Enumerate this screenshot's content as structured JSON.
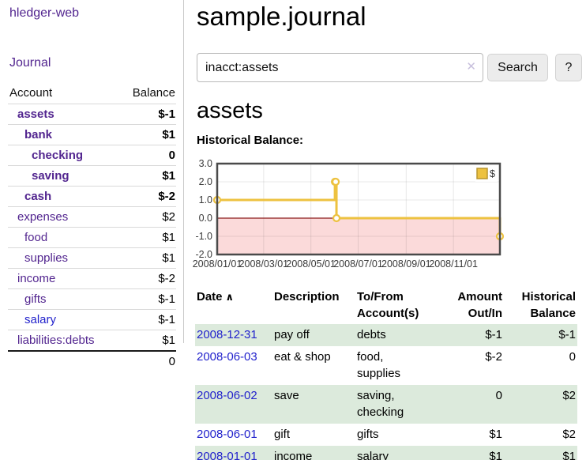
{
  "colors": {
    "link_purple": "#52258f",
    "link_blue": "#2222cc",
    "negative_strong": "#8b1c1c",
    "negative_muted": "#b05c5c",
    "row_green": "#dceadc",
    "chart_gold": "#EDC240",
    "chart_negative_fill": "#fbdada",
    "chart_zero_line": "#8b1a1a",
    "chart_border": "#4a4a4a"
  },
  "sidebar": {
    "app_title": "hledger-web",
    "journal_link": "Journal",
    "accounts_table": {
      "headers": {
        "account": "Account",
        "balance": "Balance"
      },
      "rows": [
        {
          "account": "assets",
          "level": 1,
          "bold": true,
          "balance": "$-1",
          "balance_style": "neg-strong",
          "link_color": "purple"
        },
        {
          "account": "bank",
          "level": 2,
          "bold": true,
          "balance": "$1",
          "balance_style": "pos",
          "link_color": "purple"
        },
        {
          "account": "checking",
          "level": 3,
          "bold": true,
          "balance": "0",
          "balance_style": "pos",
          "link_color": "purple"
        },
        {
          "account": "saving",
          "level": 3,
          "bold": true,
          "balance": "$1",
          "balance_style": "pos",
          "link_color": "purple"
        },
        {
          "account": "cash",
          "level": 2,
          "bold": true,
          "balance": "$-2",
          "balance_style": "neg-strong",
          "link_color": "purple"
        },
        {
          "account": "expenses",
          "level": 1,
          "bold": false,
          "balance": "$2",
          "balance_style": "pos",
          "link_color": "purple"
        },
        {
          "account": "food",
          "level": 2,
          "bold": false,
          "balance": "$1",
          "balance_style": "pos",
          "link_color": "purple"
        },
        {
          "account": "supplies",
          "level": 2,
          "bold": false,
          "balance": "$1",
          "balance_style": "pos",
          "link_color": "purple"
        },
        {
          "account": "income",
          "level": 1,
          "bold": false,
          "balance": "$-2",
          "balance_style": "neg-muted",
          "link_color": "purple"
        },
        {
          "account": "gifts",
          "level": 2,
          "bold": false,
          "balance": "$-1",
          "balance_style": "neg-muted",
          "link_color": "purple"
        },
        {
          "account": "salary",
          "level": 2,
          "bold": false,
          "balance": "$-1",
          "balance_style": "neg-muted",
          "link_color": "blue"
        },
        {
          "account": "liabilities:debts",
          "level": 1,
          "bold": false,
          "balance": "$1",
          "balance_style": "pos",
          "link_color": "purple"
        }
      ],
      "total": "0"
    }
  },
  "main": {
    "title": "sample.journal",
    "search": {
      "value": "inacct:assets",
      "clear_icon": "✕",
      "button_label": "Search",
      "help_label": "?"
    },
    "account_heading": "assets",
    "chart_label": "Historical Balance:"
  },
  "chart_data": {
    "type": "line",
    "step": true,
    "title": "Historical Balance",
    "legend": [
      {
        "label": "$",
        "color": "#EDC240"
      }
    ],
    "legend_position": "top-right",
    "series": [
      {
        "name": "$",
        "color": "#EDC240",
        "points": [
          [
            "2008-01-01",
            1
          ],
          [
            "2008-06-01",
            2
          ],
          [
            "2008-06-02",
            2
          ],
          [
            "2008-06-03",
            0
          ],
          [
            "2008-12-31",
            -1
          ]
        ]
      }
    ],
    "x_range": [
      "2008-01-01",
      "2008-12-31"
    ],
    "x_tick_dates": [
      "2008-01-01",
      "2008-03-01",
      "2008-05-01",
      "2008-07-01",
      "2008-09-01",
      "2008-11-01"
    ],
    "x_tick_labels": [
      "2008/01/01",
      "2008/03/01",
      "2008/05/01",
      "2008/07/01",
      "2008/09/01",
      "2008/11/01"
    ],
    "y_ticks": [
      3.0,
      2.0,
      1.0,
      0.0,
      -1.0,
      -2.0
    ],
    "y_tick_labels": [
      "3.0",
      "2.0",
      "1.0",
      "0.0",
      "-1.0",
      "-2.0"
    ],
    "ylim": [
      -2,
      3
    ],
    "grid": true,
    "negative_region_color": "#fbdada",
    "zero_line_color": "#8b1a1a"
  },
  "register_table": {
    "sort_icon": "∧",
    "headers": [
      {
        "label": "Date",
        "sortable": true
      },
      {
        "label": "Description"
      },
      {
        "label": "To/From Account(s)"
      },
      {
        "label": "Amount Out/In",
        "align": "right"
      },
      {
        "label": "Historical Balance",
        "align": "right"
      }
    ],
    "rows": [
      {
        "date": "2008-12-31",
        "description": "pay off",
        "accounts": "debts",
        "amount": "$-1",
        "amount_neg": true,
        "balance": "$-1",
        "balance_neg": true,
        "shaded": true
      },
      {
        "date": "2008-06-03",
        "description": "eat & shop",
        "accounts": "food, supplies",
        "amount": "$-2",
        "amount_neg": true,
        "balance": "0",
        "balance_neg": false,
        "shaded": false
      },
      {
        "date": "2008-06-02",
        "description": "save",
        "accounts": "saving, checking",
        "amount": "0",
        "amount_neg": false,
        "balance": "$2",
        "balance_neg": false,
        "shaded": true
      },
      {
        "date": "2008-06-01",
        "description": "gift",
        "accounts": "gifts",
        "amount": "$1",
        "amount_neg": false,
        "balance": "$2",
        "balance_neg": false,
        "shaded": false
      },
      {
        "date": "2008-01-01",
        "description": "income",
        "accounts": "salary",
        "amount": "$1",
        "amount_neg": false,
        "balance": "$1",
        "balance_neg": false,
        "shaded": true
      }
    ]
  }
}
